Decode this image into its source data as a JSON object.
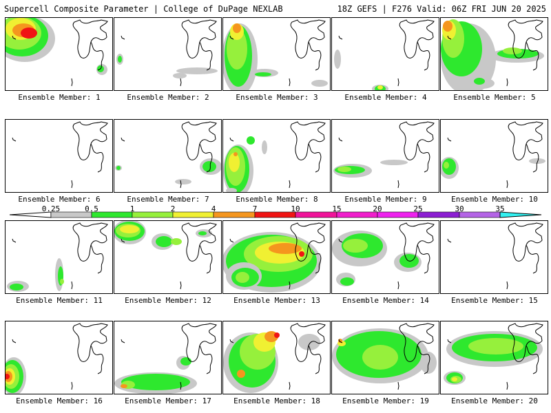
{
  "header": {
    "title_left": "Supercell Composite Parameter | College of DuPage NEXLAB",
    "title_right": "18Z GEFS | F276 Valid: 06Z FRI JUN 20 2025"
  },
  "colorbar": {
    "labels": [
      "0.25",
      "0.5",
      "1",
      "2",
      "4",
      "7",
      "10",
      "15",
      "20",
      "25",
      "30",
      "35"
    ],
    "colors": [
      "#c8c8c8",
      "#2ee82e",
      "#96f03c",
      "#f0f032",
      "#f5961e",
      "#f01414",
      "#f0149a",
      "#f01ecc",
      "#ee22ee",
      "#8c1ed2",
      "#b464e6",
      "#32f0f0"
    ]
  },
  "colors": {
    "l1": "#c8c8c8",
    "l2": "#2ee82e",
    "l3": "#96f03c",
    "l4": "#f0f032",
    "l5": "#f5961e",
    "l6": "#f01414"
  },
  "panels": [
    {
      "caption": "Ensemble Member: 1"
    },
    {
      "caption": "Ensemble Member: 2"
    },
    {
      "caption": "Ensemble Member: 3"
    },
    {
      "caption": "Ensemble Member: 4"
    },
    {
      "caption": "Ensemble Member: 5"
    },
    {
      "caption": "Ensemble Member: 6"
    },
    {
      "caption": "Ensemble Member: 7"
    },
    {
      "caption": "Ensemble Member: 8"
    },
    {
      "caption": "Ensemble Member: 9"
    },
    {
      "caption": "Ensemble Member: 10"
    },
    {
      "caption": "Ensemble Member: 11"
    },
    {
      "caption": "Ensemble Member: 12"
    },
    {
      "caption": "Ensemble Member: 13"
    },
    {
      "caption": "Ensemble Member: 14"
    },
    {
      "caption": "Ensemble Member: 15"
    },
    {
      "caption": "Ensemble Member: 16"
    },
    {
      "caption": "Ensemble Member: 17"
    },
    {
      "caption": "Ensemble Member: 18"
    },
    {
      "caption": "Ensemble Member: 19"
    },
    {
      "caption": "Ensemble Member: 20"
    }
  ]
}
